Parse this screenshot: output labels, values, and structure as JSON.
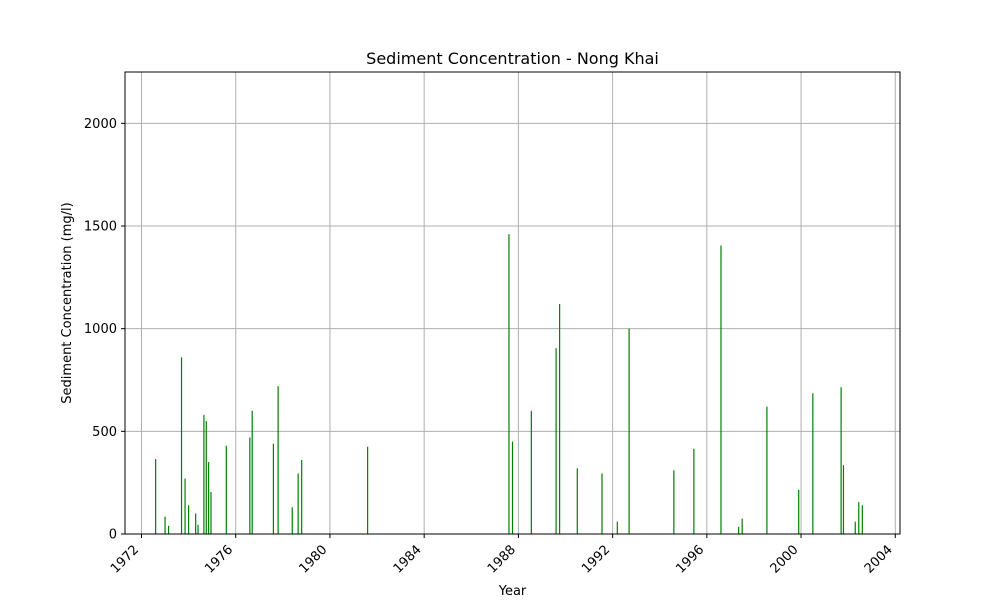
{
  "chart_data": {
    "type": "bar",
    "title": "Sediment Concentration - Nong Khai",
    "xlabel": "Year",
    "ylabel": "Sediment Concentration (mg/l)",
    "xlim": [
      1971.3,
      2004.2
    ],
    "ylim": [
      0,
      2250
    ],
    "x_ticks": [
      1972,
      1976,
      1980,
      1984,
      1988,
      1992,
      1996,
      2000,
      2004
    ],
    "y_ticks": [
      0,
      500,
      1000,
      1500,
      2000
    ],
    "grid": true,
    "bar_color": "#008000",
    "x": [
      1972.6,
      1973.0,
      1973.15,
      1973.7,
      1973.85,
      1974.0,
      1974.3,
      1974.4,
      1974.65,
      1974.75,
      1974.85,
      1974.95,
      1975.6,
      1976.6,
      1976.7,
      1977.6,
      1977.8,
      1978.4,
      1978.65,
      1978.8,
      1981.6,
      1987.6,
      1987.75,
      1988.55,
      1989.6,
      1989.75,
      1990.5,
      1991.55,
      1992.2,
      1992.7,
      1994.6,
      1995.45,
      1996.6,
      1997.35,
      1997.5,
      1998.55,
      1999.9,
      2000.5,
      2001.7,
      2001.8,
      2002.3,
      2002.45,
      2002.6
    ],
    "values": [
      365,
      85,
      40,
      860,
      270,
      140,
      100,
      45,
      580,
      550,
      350,
      205,
      430,
      470,
      600,
      440,
      720,
      130,
      295,
      360,
      425,
      1460,
      450,
      600,
      905,
      1120,
      320,
      295,
      60,
      1000,
      310,
      415,
      1405,
      35,
      75,
      620,
      215,
      685,
      715,
      335,
      60,
      155,
      140
    ]
  }
}
